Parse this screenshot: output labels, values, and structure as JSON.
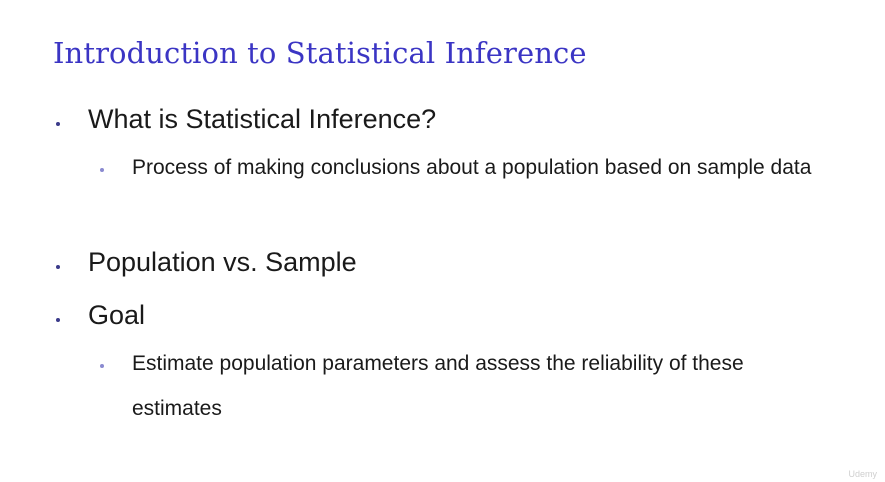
{
  "slide": {
    "title": "Introduction to Statistical Inference",
    "bullets": [
      {
        "text": "What is Statistical Inference?",
        "sub": "Process of making conclusions about a population based on sample data"
      },
      {
        "text": "Population vs. Sample"
      },
      {
        "text": "Goal",
        "sub": "Estimate population parameters and assess the reliability of these estimates"
      }
    ],
    "watermark": "Udemy"
  },
  "colors": {
    "title": "#3b35c4",
    "text": "#1a1a1a",
    "bullet_level1": "#3b3b8a",
    "bullet_level2": "#8a8ad0"
  }
}
